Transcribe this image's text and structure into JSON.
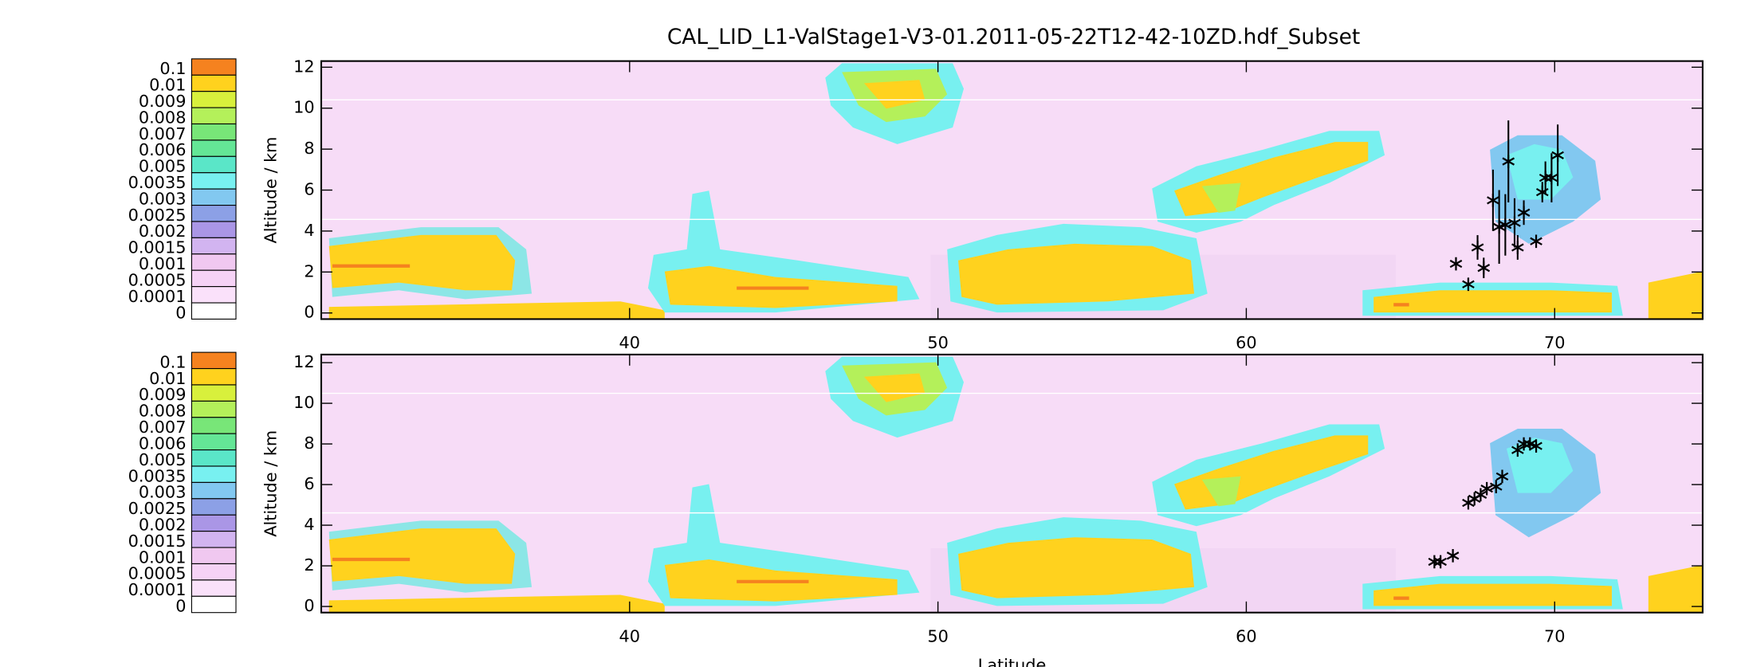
{
  "chart_data": [
    {
      "type": "scatter",
      "title": "CAL_LID_L1-ValStage1-V3-01.2011-05-22T12-42-10ZD.hdf_Subset",
      "ylabel": "Altitude / km",
      "xlim": [
        30,
        74.8
      ],
      "ylim": [
        -0.3,
        12.3
      ],
      "xticks": [
        40,
        50,
        60,
        70
      ],
      "yticks": [
        0,
        2,
        4,
        6,
        8,
        10,
        12
      ],
      "colorbar": {
        "levels": [
          0.1,
          0.01,
          0.009,
          0.008,
          0.007,
          0.006,
          0.005,
          0.0035,
          0.003,
          0.0025,
          0.002,
          0.0015,
          0.001,
          0.0005,
          0.0001,
          0
        ],
        "colors": [
          "#f5821f",
          "#ffd21e",
          "#d8f03c",
          "#b4f05a",
          "#78e678",
          "#64e696",
          "#5ae6c8",
          "#78f0f0",
          "#82c8f0",
          "#8ca0e6",
          "#aa96e6",
          "#d2b4f0",
          "#f0c8f0",
          "#f5d2f5",
          "#fae1fa",
          "#ffffff"
        ]
      },
      "color": "#000000",
      "x": [
        66.8,
        67.2,
        67.5,
        67.7,
        68.0,
        68.2,
        68.5,
        68.4,
        68.7,
        68.8,
        69.0,
        69.6,
        69.7,
        69.9,
        70.1,
        69.4
      ],
      "values": [
        2.4,
        1.4,
        3.2,
        2.2,
        5.5,
        4.2,
        7.4,
        4.3,
        4.4,
        3.2,
        4.9,
        5.9,
        6.6,
        6.6,
        7.7,
        3.5
      ],
      "errors": [
        0,
        0.3,
        0.6,
        0.5,
        1.5,
        1.8,
        2.0,
        1.5,
        1.2,
        0.6,
        0.6,
        0.5,
        0.8,
        1.2,
        1.5,
        0
      ]
    },
    {
      "type": "scatter",
      "ylabel": "Altitude / km",
      "xlabel": "Latitude",
      "xlim": [
        30,
        74.8
      ],
      "ylim": [
        -0.3,
        12.4
      ],
      "xticks": [
        40,
        50,
        60,
        70
      ],
      "yticks": [
        0,
        2,
        4,
        6,
        8,
        10,
        12
      ],
      "colorbar": {
        "levels": [
          0.1,
          0.01,
          0.009,
          0.008,
          0.007,
          0.006,
          0.005,
          0.0035,
          0.003,
          0.0025,
          0.002,
          0.0015,
          0.001,
          0.0005,
          0.0001,
          0
        ],
        "colors": [
          "#f5821f",
          "#ffd21e",
          "#d8f03c",
          "#b4f05a",
          "#78e678",
          "#64e696",
          "#5ae6c8",
          "#78f0f0",
          "#82c8f0",
          "#8ca0e6",
          "#aa96e6",
          "#d2b4f0",
          "#f0c8f0",
          "#f5d2f5",
          "#fae1fa",
          "#ffffff"
        ]
      },
      "color": "#000000",
      "x": [
        66.1,
        66.3,
        66.7,
        67.2,
        67.4,
        67.6,
        67.8,
        68.1,
        68.3,
        68.8,
        69.0,
        69.2,
        69.4
      ],
      "values": [
        2.2,
        2.2,
        2.5,
        5.1,
        5.3,
        5.5,
        5.8,
        5.9,
        6.4,
        7.7,
        8.0,
        8.0,
        7.9
      ]
    }
  ]
}
